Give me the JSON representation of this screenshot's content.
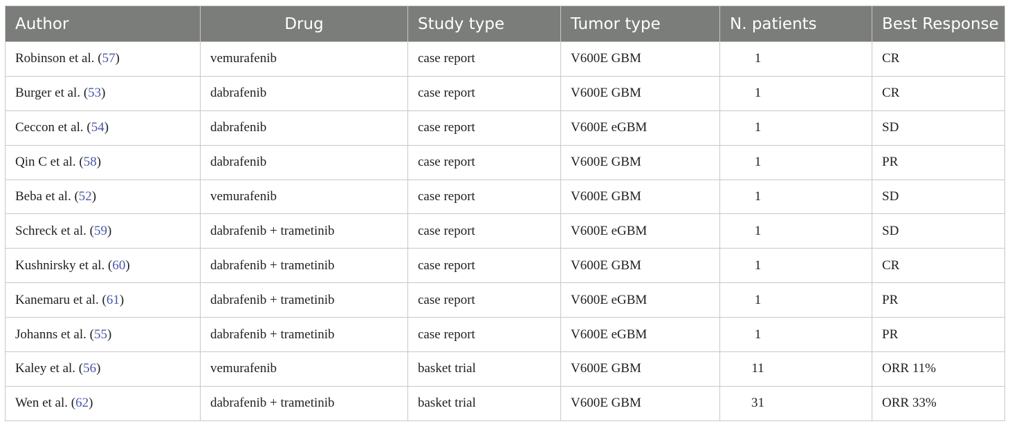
{
  "table": {
    "headers": [
      "Author",
      "Drug",
      "Study type",
      "Tumor type",
      "N. patients",
      "Best Response"
    ],
    "rows": [
      {
        "author": "Robinson et al. (",
        "ref": "57",
        "close": ")",
        "drug": "vemurafenib",
        "study": "case report",
        "tumor": "V600E GBM",
        "n": "1",
        "response": "CR"
      },
      {
        "author": "Burger et al. (",
        "ref": "53",
        "close": ")",
        "drug": "dabrafenib",
        "study": "case report",
        "tumor": "V600E GBM",
        "n": "1",
        "response": "CR"
      },
      {
        "author": "Ceccon et al. (",
        "ref": "54",
        "close": ")",
        "drug": "dabrafenib",
        "study": "case report",
        "tumor": "V600E eGBM",
        "n": "1",
        "response": "SD"
      },
      {
        "author": "Qin C et al. (",
        "ref": "58",
        "close": ")",
        "drug": "dabrafenib",
        "study": "case report",
        "tumor": "V600E GBM",
        "n": "1",
        "response": "PR"
      },
      {
        "author": "Beba et al. (",
        "ref": "52",
        "close": ")",
        "drug": "vemurafenib",
        "study": "case report",
        "tumor": "V600E GBM",
        "n": "1",
        "response": "SD"
      },
      {
        "author": "Schreck et al. (",
        "ref": "59",
        "close": ")",
        "drug": "dabrafenib + trametinib",
        "study": "case report",
        "tumor": "V600E eGBM",
        "n": "1",
        "response": "SD"
      },
      {
        "author": "Kushnirsky et al. (",
        "ref": "60",
        "close": ")",
        "drug": "dabrafenib + trametinib",
        "study": "case report",
        "tumor": "V600E GBM",
        "n": "1",
        "response": "CR"
      },
      {
        "author": "Kanemaru et al. (",
        "ref": "61",
        "close": ")",
        "drug": "dabrafenib + trametinib",
        "study": "case report",
        "tumor": "V600E eGBM",
        "n": "1",
        "response": "PR"
      },
      {
        "author": "Johanns et al. (",
        "ref": "55",
        "close": ")",
        "drug": "dabrafenib + trametinib",
        "study": "case report",
        "tumor": "V600E eGBM",
        "n": "1",
        "response": "PR"
      },
      {
        "author": "Kaley et al. (",
        "ref": "56",
        "close": ")",
        "drug": "vemurafenib",
        "study": "basket trial",
        "tumor": "V600E GBM",
        "n": "11",
        "response": "ORR 11%"
      },
      {
        "author": "Wen et al. (",
        "ref": "62",
        "close": ")",
        "drug": "dabrafenib + trametinib",
        "study": "basket trial",
        "tumor": "V600E GBM",
        "n": "31",
        "response": "ORR 33%"
      }
    ]
  },
  "colors": {
    "header_bg": "#7b7d7a",
    "header_text": "#ffffff",
    "grid_line": "#c8c8c8",
    "reference_link": "#4a55a8"
  }
}
